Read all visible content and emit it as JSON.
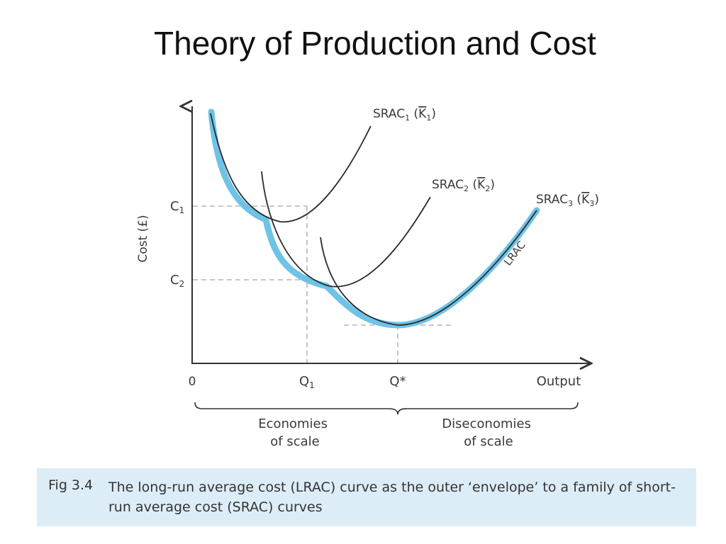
{
  "slide": {
    "title": "Theory of Production and Cost"
  },
  "figure": {
    "y_axis_label": "Cost (£)",
    "x_axis_label": "Output",
    "origin_label": "0",
    "y_ticks": {
      "c1": {
        "base": "C",
        "sub": "1"
      },
      "c2": {
        "base": "C",
        "sub": "2"
      }
    },
    "x_ticks": {
      "q1": {
        "base": "Q",
        "sub": "1"
      },
      "qstar": "Q*"
    },
    "curves": {
      "srac1": {
        "base": "SRAC",
        "sub": "1",
        "cap_open": " (",
        "cap_letter": "K",
        "cap_sub": "1",
        "cap_close": ")"
      },
      "srac2": {
        "base": "SRAC",
        "sub": "2",
        "cap_open": " (",
        "cap_letter": "K",
        "cap_sub": "2",
        "cap_close": ")"
      },
      "srac3": {
        "base": "SRAC",
        "sub": "3",
        "cap_open": " (",
        "cap_letter": "K",
        "cap_sub": "3",
        "cap_close": ")"
      },
      "lrac": "LRAC"
    },
    "regions": {
      "economies_line1": "Economies",
      "economies_line2": "of scale",
      "diseconomies_line1": "Diseconomies",
      "diseconomies_line2": "of scale"
    },
    "colors": {
      "lrac_envelope": "#6ec3e6",
      "curve": "#2b2b2b",
      "guide": "#b5b5b5",
      "caption_bg": "#dcedf7"
    }
  },
  "caption": {
    "number": "Fig 3.4",
    "text": "The long-run average cost (LRAC) curve as the outer ‘envelope’ to a family of short-run average cost (SRAC) curves"
  }
}
